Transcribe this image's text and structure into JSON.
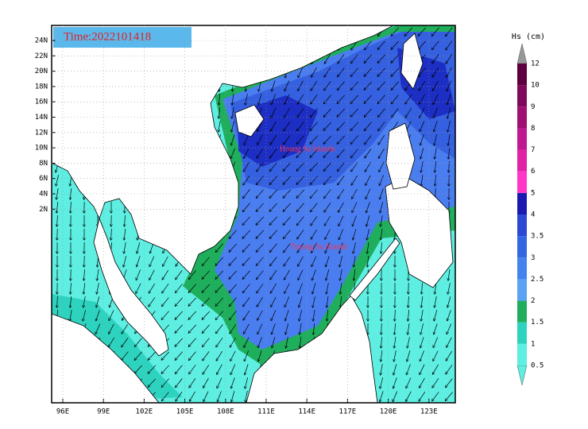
{
  "title": "Time:2022101418",
  "annotations": [
    "Hoang Sa Islands",
    "Truong Sa Islands"
  ],
  "lat_labels": [
    "24N",
    "22N",
    "20N",
    "18N",
    "16N",
    "14N",
    "12N",
    "10N",
    "8N",
    "6N",
    "4N",
    "2N"
  ],
  "lon_labels": [
    "96E",
    "99E",
    "102E",
    "105E",
    "108E",
    "111E",
    "114E",
    "117E",
    "120E",
    "123E"
  ],
  "colorbar": {
    "title": "Hs (cm)",
    "labels": [
      "0.5",
      "1",
      "1.5",
      "2",
      "2.5",
      "3",
      "3.5",
      "4",
      "5",
      "6",
      "7",
      "8",
      "9",
      "10",
      "12"
    ],
    "colors": [
      "#5eeee2",
      "#2ed3bf",
      "#1fae5c",
      "#5aa2f2",
      "#4482ee",
      "#3566e2",
      "#2c48d4",
      "#1a1ab2",
      "#ff36c8",
      "#e021a6",
      "#c01890",
      "#a01072",
      "#80085a",
      "#5e0040"
    ]
  }
}
